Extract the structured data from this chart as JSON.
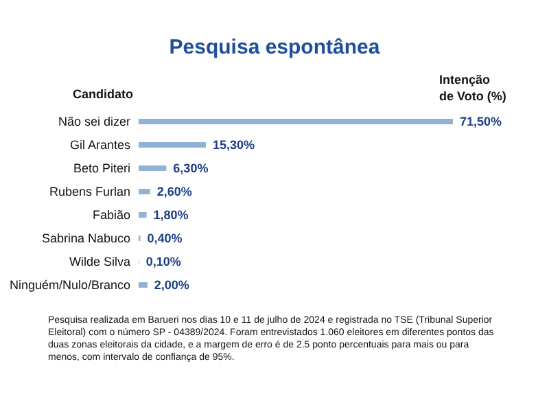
{
  "chart_data": {
    "type": "bar",
    "orientation": "horizontal",
    "title": "Pesquisa espontânea",
    "ylabel": "Candidato",
    "xlabel": "Intenção de Voto (%)",
    "categories": [
      "Não sei dizer",
      "Gil Arantes",
      "Beto Piteri",
      "Rubens Furlan",
      "Fabião",
      "Sabrina Nabuco",
      "Wilde Silva",
      "Ninguém/Nulo/Branco"
    ],
    "values": [
      71.5,
      15.3,
      6.3,
      2.6,
      1.8,
      0.4,
      0.1,
      2.0
    ],
    "value_labels": [
      "71,50%",
      "15,30%",
      "6,30%",
      "2,60%",
      "1,80%",
      "0,40%",
      "0,10%",
      "2,00%"
    ],
    "color": "#8fb3d6",
    "annotations": [
      "Pesquisa realizada em Barueri nos dias 10 e 11 de julho de 2024 e registrada no TSE (Tribunal Superior Eleitoral) com o número SP - 04389/2024. Foram entrevistados 1.060 eleitores em diferentes pontos das duas zonas eleitorais da cidade, e a margem de erro é de 2.5 ponto percentuais para mais ou para menos, com intervalo de confiança de 95%."
    ]
  }
}
